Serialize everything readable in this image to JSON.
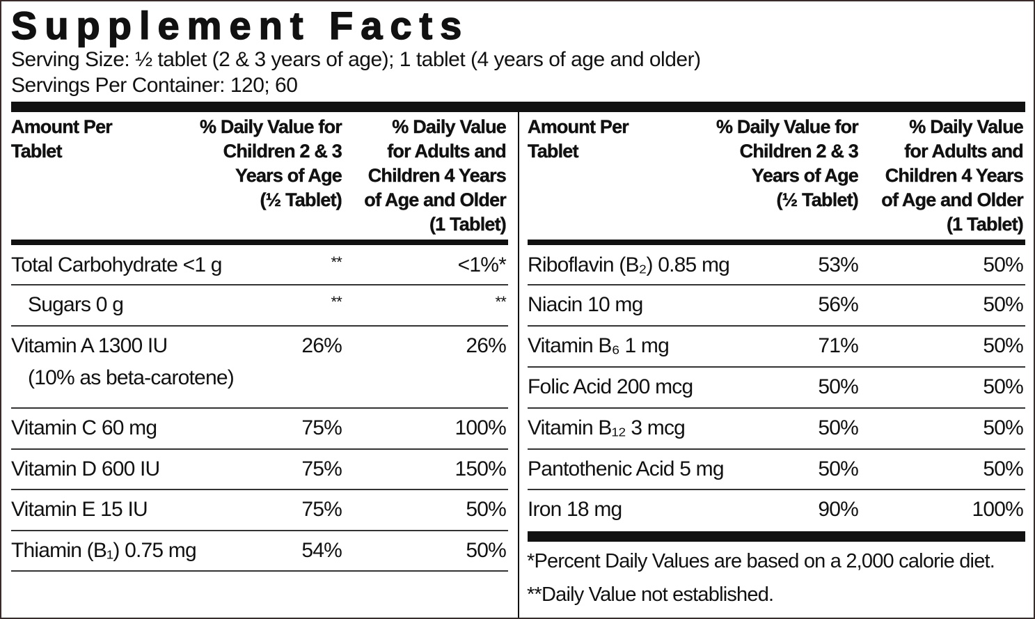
{
  "header": {
    "title": "Supplement Facts",
    "serving_size": "Serving Size: ½ tablet (2 & 3 years of age); 1 tablet (4 years of age and older)",
    "servings_per_container": "Servings Per Container: 120; 60"
  },
  "table": {
    "columns": [
      [
        "Amount Per",
        "Tablet"
      ],
      [
        "% Daily Value for",
        "Children 2 & 3",
        "Years of Age",
        "(½ Tablet)"
      ],
      [
        "% Daily Value",
        "for Adults and",
        "Children 4 Years",
        "of Age and Older",
        "(1 Tablet)"
      ]
    ],
    "left_rows": [
      [
        "Total Carbohydrate <1 g",
        "**",
        "<1%*"
      ],
      [
        "Sugars 0 g",
        "**",
        "**"
      ],
      [
        "Vitamin A 1300 IU",
        "26%",
        "26%",
        "(10% as beta-carotene)"
      ],
      [
        "Vitamin C 60 mg",
        "75%",
        "100%"
      ],
      [
        "Vitamin D 600 IU",
        "75%",
        "150%"
      ],
      [
        "Vitamin E 15 IU",
        "75%",
        "50%"
      ],
      [
        "Thiamin (B₁) 0.75 mg",
        "54%",
        "50%"
      ]
    ],
    "right_rows": [
      [
        "Riboflavin (B₂) 0.85 mg",
        "53%",
        "50%"
      ],
      [
        "Niacin 10 mg",
        "56%",
        "50%"
      ],
      [
        "Vitamin B₆ 1 mg",
        "71%",
        "50%"
      ],
      [
        "Folic Acid 200 mcg",
        "50%",
        "50%"
      ],
      [
        "Vitamin B₁₂ 3 mcg",
        "50%",
        "50%"
      ],
      [
        "Pantothenic Acid 5 mg",
        "50%",
        "50%"
      ],
      [
        "Iron 18 mg",
        "90%",
        "100%"
      ]
    ]
  },
  "footnotes": [
    "*Percent Daily Values are based on a 2,000 calorie diet.",
    "**Daily Value not established."
  ]
}
